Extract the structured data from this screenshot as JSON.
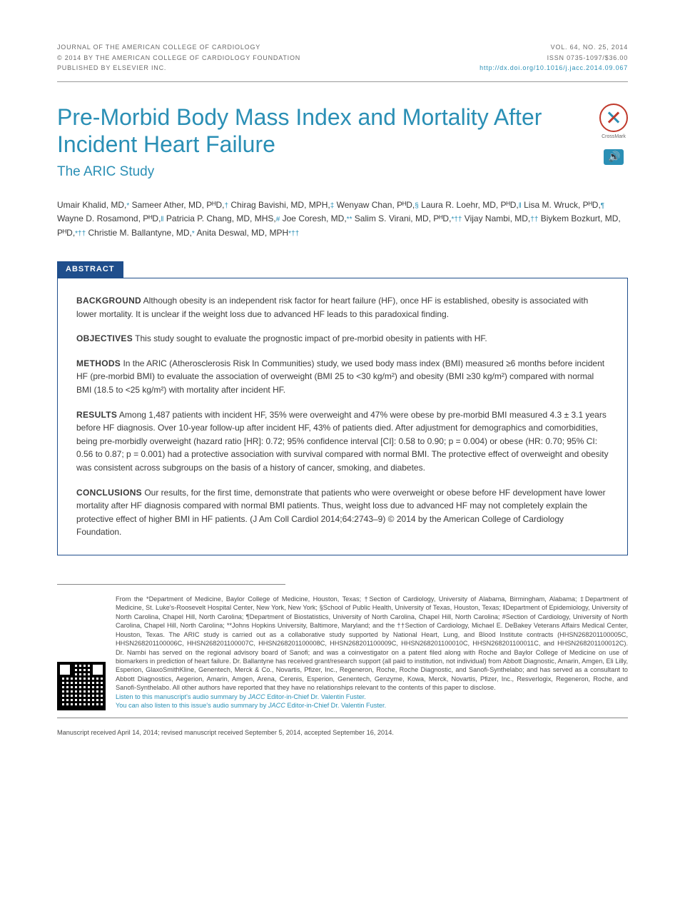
{
  "header": {
    "left": [
      "JOURNAL OF THE AMERICAN COLLEGE OF CARDIOLOGY",
      "© 2014 BY THE AMERICAN COLLEGE OF CARDIOLOGY FOUNDATION",
      "PUBLISHED BY ELSEVIER INC."
    ],
    "right": [
      "VOL. 64, NO. 25, 2014",
      "ISSN 0735-1097/$36.00"
    ],
    "doi": "http://dx.doi.org/10.1016/j.jacc.2014.09.067"
  },
  "title": "Pre-Morbid Body Mass Index and Mortality After Incident Heart Failure",
  "subtitle": "The ARIC Study",
  "badges": {
    "crossmark_label": "CrossMark",
    "audio_label": "audio"
  },
  "authors_html": "Umair Khalid, MD,<span class='sym'>*</span> Sameer Ather, MD, PᴴD,<span class='sym'>†</span> Chirag Bavishi, MD, MPH,<span class='sym'>‡</span> Wenyaw Chan, PᴴD,<span class='sym'>§</span> Laura R. Loehr, MD, PᴴD,<span class='sym'>‖</span> Lisa M. Wruck, PᴴD,<span class='sym'>¶</span> Wayne D. Rosamond, PᴴD,<span class='sym'>‖</span> Patricia P. Chang, MD, MHS,<span class='sym'>#</span> Joe Coresh, MD,<span class='sym'>**</span> Salim S. Virani, MD, PᴴD,<span class='sym'>*††</span> Vijay Nambi, MD,<span class='sym'>††</span> Biykem Bozkurt, MD, PᴴD,<span class='sym'>*††</span> Christie M. Ballantyne, MD,<span class='sym'>*</span> Anita Deswal, MD, MPH<span class='sym'>*††</span>",
  "abstract_label": "ABSTRACT",
  "abstract": {
    "background": "Although obesity is an independent risk factor for heart failure (HF), once HF is established, obesity is associated with lower mortality. It is unclear if the weight loss due to advanced HF leads to this paradoxical finding.",
    "objectives": "This study sought to evaluate the prognostic impact of pre-morbid obesity in patients with HF.",
    "methods": "In the ARIC (Atherosclerosis Risk In Communities) study, we used body mass index (BMI) measured ≥6 months before incident HF (pre-morbid BMI) to evaluate the association of overweight (BMI 25 to <30 kg/m²) and obesity (BMI ≥30 kg/m²) compared with normal BMI (18.5 to <25 kg/m²) with mortality after incident HF.",
    "results": "Among 1,487 patients with incident HF, 35% were overweight and 47% were obese by pre-morbid BMI measured 4.3 ± 3.1 years before HF diagnosis. Over 10-year follow-up after incident HF, 43% of patients died. After adjustment for demographics and comorbidities, being pre-morbidly overweight (hazard ratio [HR]: 0.72; 95% confidence interval [CI]: 0.58 to 0.90; p = 0.004) or obese (HR: 0.70; 95% CI: 0.56 to 0.87; p = 0.001) had a protective association with survival compared with normal BMI. The protective effect of overweight and obesity was consistent across subgroups on the basis of a history of cancer, smoking, and diabetes.",
    "conclusions": "Our results, for the first time, demonstrate that patients who were overweight or obese before HF development have lower mortality after HF diagnosis compared with normal BMI patients. Thus, weight loss due to advanced HF may not completely explain the protective effect of higher BMI in HF patients. (J Am Coll Cardiol 2014;64:2743–9) © 2014 by the American College of Cardiology Foundation."
  },
  "affiliations": "From the *Department of Medicine, Baylor College of Medicine, Houston, Texas; †Section of Cardiology, University of Alabama, Birmingham, Alabama; ‡Department of Medicine, St. Luke's-Roosevelt Hospital Center, New York, New York; §School of Public Health, University of Texas, Houston, Texas; ‖Department of Epidemiology, University of North Carolina, Chapel Hill, North Carolina; ¶Department of Biostatistics, University of North Carolina, Chapel Hill, North Carolina; #Section of Cardiology, University of North Carolina, Chapel Hill, North Carolina; **Johns Hopkins University, Baltimore, Maryland; and the ††Section of Cardiology, Michael E. DeBakey Veterans Affairs Medical Center, Houston, Texas. The ARIC study is carried out as a collaborative study supported by National Heart, Lung, and Blood Institute contracts (HHSN268201100005C, HHSN268201100006C, HHSN268201100007C, HHSN268201100008C, HHSN268201100009C, HHSN268201100010C, HHSN268201100011C, and HHSN268201100012C). Dr. Nambi has served on the regional advisory board of Sanofi; and was a coinvestigator on a patent filed along with Roche and Baylor College of Medicine on use of biomarkers in prediction of heart failure. Dr. Ballantyne has received grant/research support (all paid to institution, not individual) from Abbott Diagnostic, Amarin, Amgen, Eli Lilly, Esperion, GlaxoSmithKline, Genentech, Merck & Co., Novartis, Pfizer, Inc., Regeneron, Roche, Roche Diagnostic, and Sanofi-Synthelabo; and has served as a consultant to Abbott Diagnostics, Aegerion, Amarin, Amgen, Arena, Cerenis, Esperion, Genentech, Genzyme, Kowa, Merck, Novartis, Pfizer, Inc., Resverlogix, Regeneron, Roche, and Sanofi-Synthelabo. All other authors have reported that they have no relationships relevant to the contents of this paper to disclose.",
  "audio_links": {
    "line1_pre": "Listen to this manuscript's audio summary by ",
    "line1_ital": "JACC",
    "line1_post": " Editor-in-Chief Dr. Valentin Fuster.",
    "line2_pre": "You can also listen to this issue's audio summary by ",
    "line2_ital": "JACC",
    "line2_post": " Editor-in-Chief Dr. Valentin Fuster."
  },
  "manuscript_dates": "Manuscript received April 14, 2014; revised manuscript received September 5, 2014, accepted September 16, 2014.",
  "colors": {
    "accent": "#2a8fb5",
    "abstract_border": "#1f4e8c",
    "text": "#3a3a3a",
    "muted": "#6a6a6a"
  }
}
